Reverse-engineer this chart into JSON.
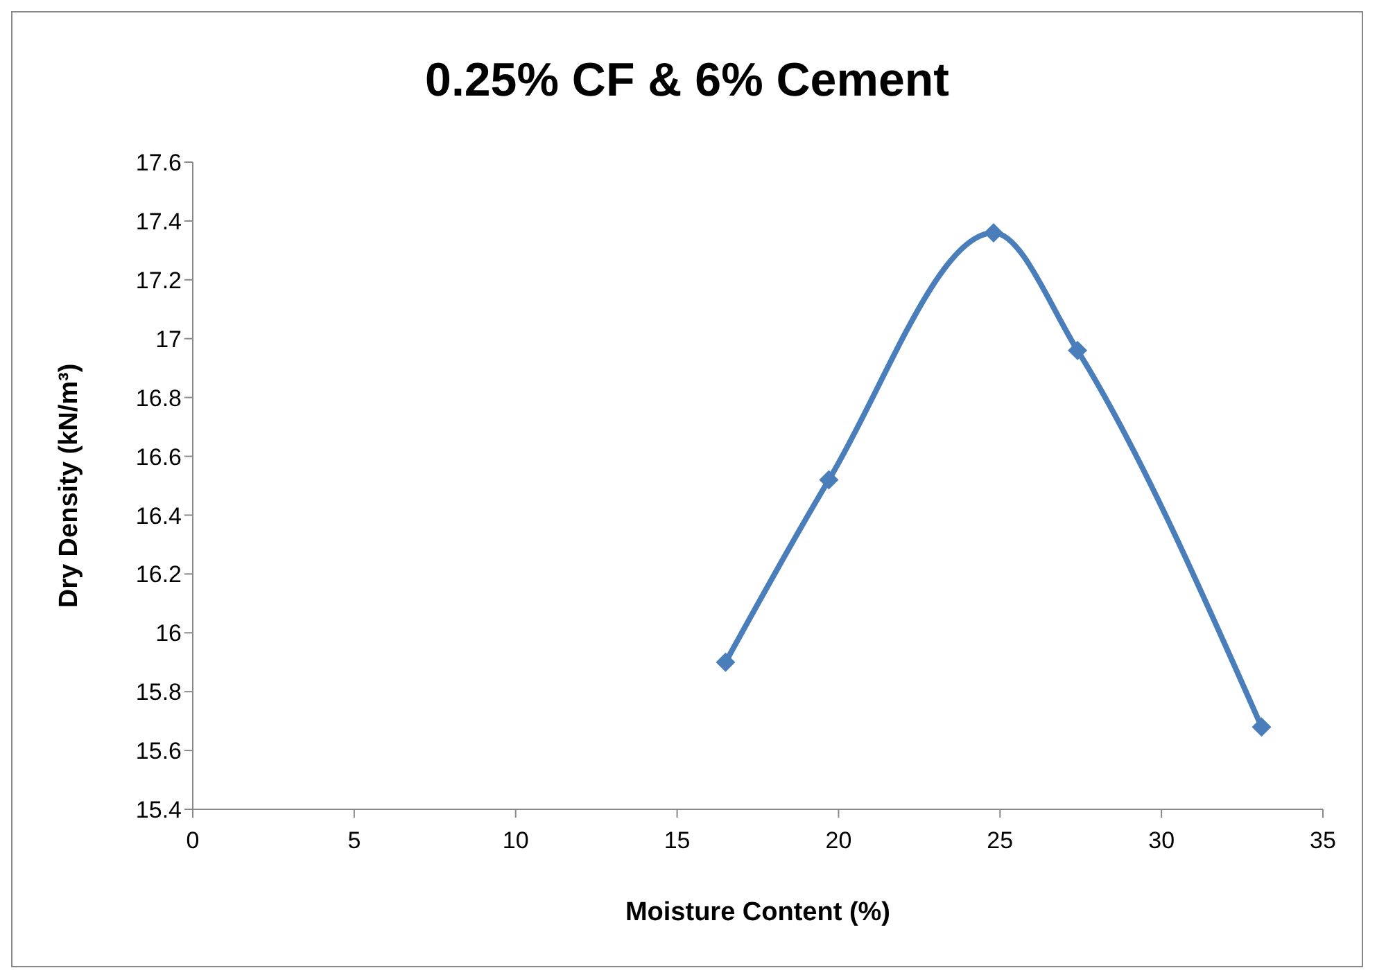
{
  "chart_data": {
    "type": "line",
    "title": "0.25% CF & 6% Cement",
    "xlabel": "Moisture Content (%)",
    "ylabel": "Dry Density (kN/m³)",
    "x": [
      16.5,
      19.7,
      24.8,
      27.4,
      33.1
    ],
    "series": [
      {
        "color": "#4a7ebb",
        "values": [
          15.9,
          16.52,
          17.36,
          16.96,
          15.68
        ]
      }
    ],
    "xlim": [
      0,
      35
    ],
    "xticks": [
      0,
      5,
      10,
      15,
      20,
      25,
      30,
      35
    ],
    "ylim": [
      15.4,
      17.6
    ],
    "yticks": [
      15.4,
      15.6,
      15.8,
      16,
      16.2,
      16.4,
      16.6,
      16.8,
      17,
      17.2,
      17.4,
      17.6
    ],
    "grid": false,
    "legend": false,
    "marker": "diamond",
    "line_style": "solid"
  }
}
